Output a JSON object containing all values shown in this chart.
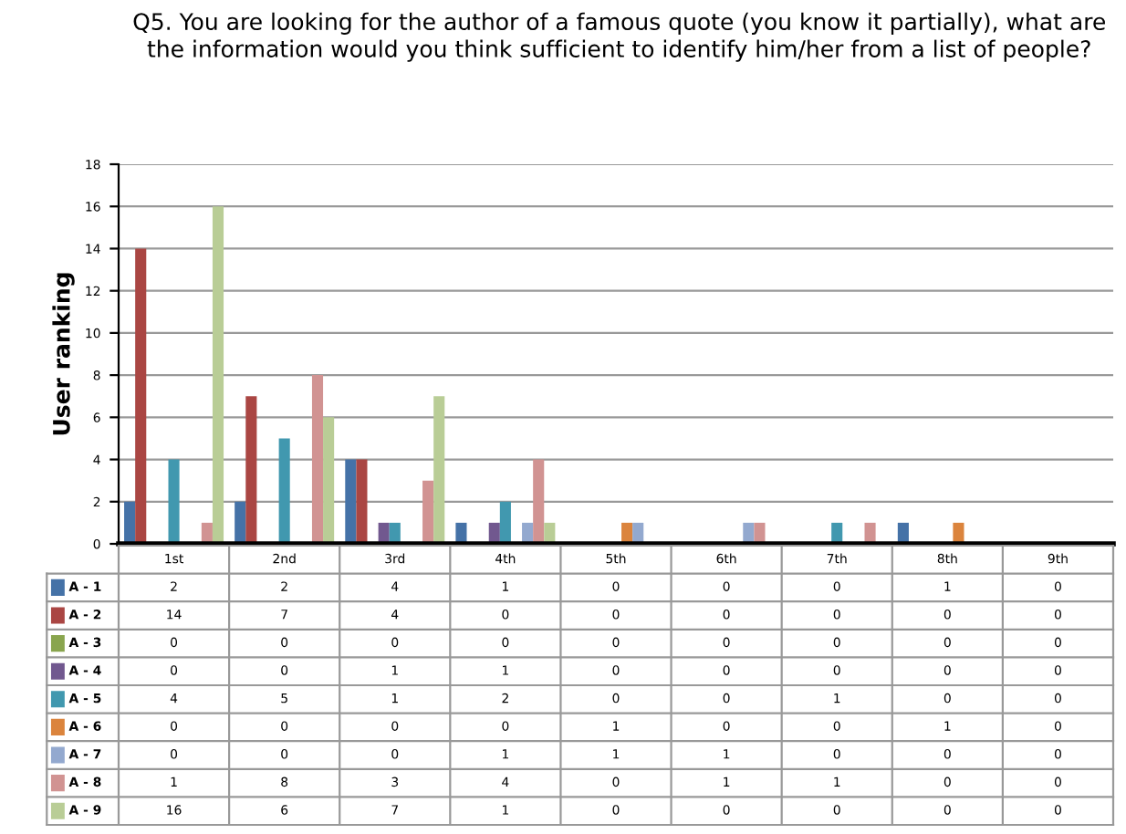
{
  "chart_data": {
    "type": "bar",
    "title": "Q5. You are looking for the author of a famous quote (you know it partially), what are the information would you think sufficient to identify him/her from a list of people?",
    "ylabel": "User ranking",
    "categories": [
      "1st",
      "2nd",
      "3rd",
      "4th",
      "5th",
      "6th",
      "7th",
      "8th",
      "9th"
    ],
    "series": [
      {
        "name": "A - 1",
        "color": "#4572a7",
        "values": [
          2,
          2,
          4,
          1,
          0,
          0,
          0,
          1,
          0
        ]
      },
      {
        "name": "A - 2",
        "color": "#aa4643",
        "values": [
          14,
          7,
          4,
          0,
          0,
          0,
          0,
          0,
          0
        ]
      },
      {
        "name": "A - 3",
        "color": "#89a54e",
        "values": [
          0,
          0,
          0,
          0,
          0,
          0,
          0,
          0,
          0
        ]
      },
      {
        "name": "A - 4",
        "color": "#71588f",
        "values": [
          0,
          0,
          1,
          1,
          0,
          0,
          0,
          0,
          0
        ]
      },
      {
        "name": "A - 5",
        "color": "#4198af",
        "values": [
          4,
          5,
          1,
          2,
          0,
          0,
          1,
          0,
          0
        ]
      },
      {
        "name": "A - 6",
        "color": "#db843d",
        "values": [
          0,
          0,
          0,
          0,
          1,
          0,
          0,
          1,
          0
        ]
      },
      {
        "name": "A - 7",
        "color": "#93a9cf",
        "values": [
          0,
          0,
          0,
          1,
          1,
          1,
          0,
          0,
          0
        ]
      },
      {
        "name": "A - 8",
        "color": "#d19392",
        "values": [
          1,
          8,
          3,
          4,
          0,
          1,
          1,
          0,
          0
        ]
      },
      {
        "name": "A - 9",
        "color": "#b9cd96",
        "values": [
          16,
          6,
          7,
          1,
          0,
          0,
          0,
          0,
          0
        ]
      }
    ],
    "ylim": [
      0,
      18
    ],
    "yticks": [
      0,
      2,
      4,
      6,
      8,
      10,
      12,
      14,
      16,
      18
    ],
    "grid": "y",
    "data_labels": true,
    "legend": "bottom"
  }
}
